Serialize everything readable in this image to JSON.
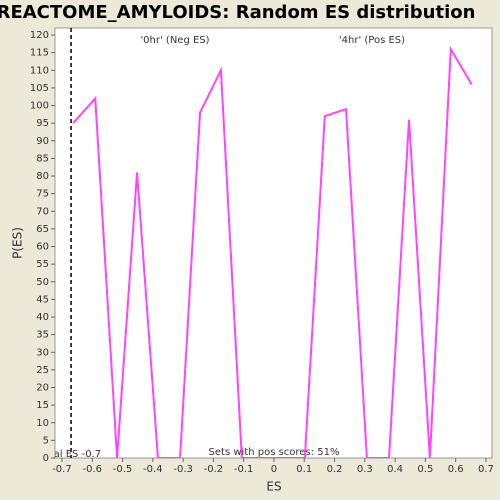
{
  "chart_data": {
    "type": "line",
    "title": "REACTOME_AMYLOIDS: Random ES distribution",
    "x_label": "ES",
    "y_label": "P(ES)",
    "x": [
      -0.663,
      -0.59,
      -0.518,
      -0.452,
      -0.383,
      -0.31,
      -0.244,
      -0.175,
      -0.106,
      0.102,
      0.168,
      0.238,
      0.307,
      0.38,
      0.446,
      0.515,
      0.584,
      0.653
    ],
    "series": [
      {
        "color": "#ff44ff",
        "values": [
          95,
          102,
          0,
          81,
          0,
          0,
          98,
          110,
          0,
          0,
          97,
          99,
          0,
          0,
          96,
          0,
          116,
          106
        ]
      }
    ],
    "xlim": [
      -0.723,
      0.72
    ],
    "ylim": [
      0,
      122
    ],
    "xticks": [
      -0.7,
      -0.6,
      -0.5,
      -0.4,
      -0.3,
      -0.2,
      -0.1,
      0,
      0.1,
      0.2,
      0.3,
      0.4,
      0.5,
      0.6,
      0.7
    ],
    "yticks": [
      0,
      5,
      10,
      15,
      20,
      25,
      30,
      35,
      40,
      45,
      50,
      55,
      60,
      65,
      70,
      75,
      80,
      85,
      90,
      95,
      100,
      105,
      110,
      115,
      120
    ],
    "real_es": -0.67,
    "real_es_label": "Real ES -0.7",
    "neg_label": "'0hr' (Neg ES)",
    "neg_color": "#3333cc",
    "pos_label": "'4hr' (Pos ES)",
    "pos_color": "#dd3333",
    "footer": "Sets with pos scores: 51%"
  }
}
